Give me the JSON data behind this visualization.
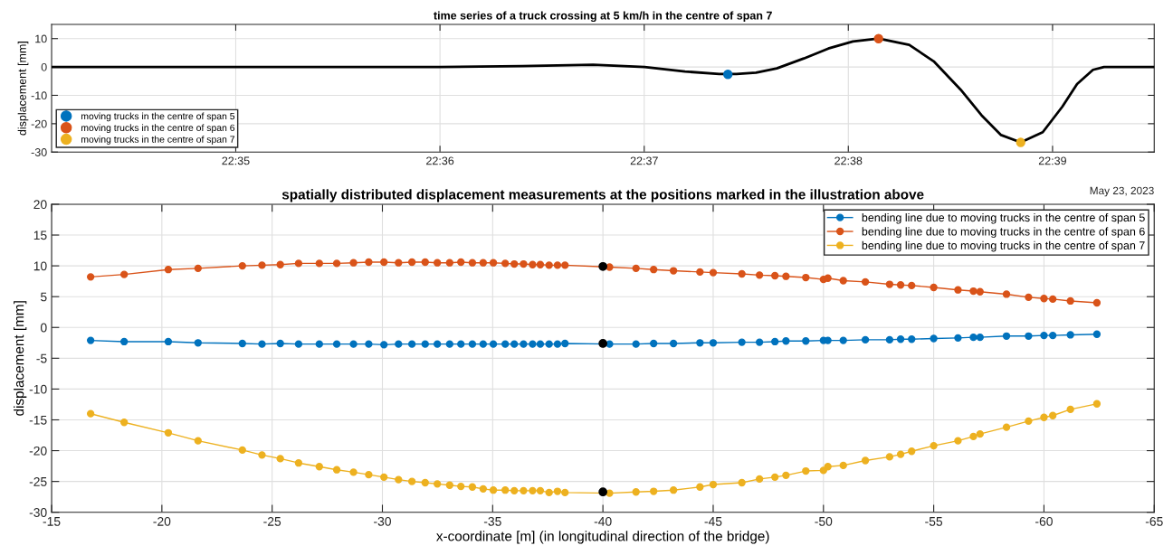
{
  "chart_data": [
    {
      "type": "line",
      "title": "time series of a truck crossing at 5 km/h in the centre of span 7",
      "ylabel": "displacement [mm]",
      "xlim": [
        22.5683,
        22.6583
      ],
      "xticks": [
        {
          "value": 22.58333,
          "label": "22:35"
        },
        {
          "value": 22.6,
          "label": "22:36"
        },
        {
          "value": 22.61667,
          "label": "22:37"
        },
        {
          "value": 22.63333,
          "label": "22:38"
        },
        {
          "value": 22.65,
          "label": "22:39"
        }
      ],
      "ylim": [
        -30,
        15
      ],
      "yticks": [
        -30,
        -20,
        -10,
        0,
        10
      ],
      "grid": true,
      "legend": "bottom left",
      "annotations": [
        "May 23, 2023"
      ],
      "series": [
        {
          "type": "line",
          "color": "#000000",
          "marker": "none",
          "x": [
            22.5683,
            22.5833,
            22.6,
            22.6067,
            22.6125,
            22.6167,
            22.62,
            22.6228,
            22.6242,
            22.6258,
            22.6275,
            22.6297,
            22.6317,
            22.6337,
            22.6358,
            22.6383,
            22.6403,
            22.6425,
            22.6442,
            22.6458,
            22.6474,
            22.6492,
            22.6508,
            22.652,
            22.6533,
            22.6542,
            22.6583
          ],
          "values": [
            0,
            0,
            0,
            0.3,
            0.8,
            0,
            -1.6,
            -2.5,
            -2.5,
            -2,
            -0.5,
            3,
            6.5,
            9,
            10,
            7.8,
            2,
            -8,
            -17,
            -24,
            -26.6,
            -23,
            -14,
            -6,
            -1,
            0,
            0
          ]
        },
        {
          "type": "scatter",
          "name": "moving trucks in the centre of span 5",
          "color": "#0072bd",
          "marker": "circle",
          "x": [
            22.6235
          ],
          "values": [
            -2.6
          ]
        },
        {
          "type": "scatter",
          "name": "moving trucks in the centre of span 6",
          "color": "#d95319",
          "marker": "circle",
          "x": [
            22.6358
          ],
          "values": [
            10
          ]
        },
        {
          "type": "scatter",
          "name": "moving trucks in the centre of span 7",
          "color": "#edb120",
          "marker": "circle",
          "x": [
            22.6474
          ],
          "values": [
            -26.6
          ]
        }
      ]
    },
    {
      "type": "line",
      "title": "spatially distributed displacement measurements at the positions marked in the illustration above",
      "xlabel": "x-coordinate [m] (in longitudinal direction of the bridge)",
      "ylabel": "displacement [mm]",
      "xlim": [
        -15,
        -65
      ],
      "xticks": [
        -15,
        -20,
        -25,
        -30,
        -35,
        -40,
        -45,
        -50,
        -55,
        -60,
        -65
      ],
      "ylim": [
        -30,
        20
      ],
      "yticks": [
        -30,
        -25,
        -20,
        -15,
        -10,
        -5,
        0,
        5,
        10,
        15,
        20
      ],
      "grid": true,
      "legend": "top right",
      "marker": "circle",
      "line_style": "solid",
      "x": [
        -16.77,
        -18.29,
        -20.29,
        -21.64,
        -23.65,
        -24.54,
        -25.37,
        -26.2,
        -27.14,
        -27.93,
        -28.69,
        -29.38,
        -30.07,
        -30.73,
        -31.34,
        -31.94,
        -32.49,
        -33.05,
        -33.56,
        -34.08,
        -34.57,
        -35.03,
        -35.57,
        -35.98,
        -36.4,
        -36.81,
        -37.16,
        -37.56,
        -37.94,
        -38.28,
        -40.3,
        -41.5,
        -42.3,
        -43.2,
        -44.4,
        -45,
        -46.3,
        -47.1,
        -47.8,
        -48.3,
        -49.2,
        -50,
        -50.2,
        -50.9,
        -51.9,
        -53,
        -53.5,
        -54,
        -55,
        -56.1,
        -56.8,
        -57.1,
        -58.3,
        -59.3,
        -60,
        -60.4,
        -61.2,
        -62.4
      ],
      "series": [
        {
          "name": "bending line due to moving trucks in the centre of span 5",
          "color": "#0072bd",
          "values": [
            -2.1,
            -2.3,
            -2.3,
            -2.5,
            -2.6,
            -2.7,
            -2.6,
            -2.7,
            -2.7,
            -2.7,
            -2.7,
            -2.7,
            -2.8,
            -2.7,
            -2.7,
            -2.7,
            -2.7,
            -2.7,
            -2.7,
            -2.7,
            -2.7,
            -2.7,
            -2.7,
            -2.7,
            -2.7,
            -2.7,
            -2.7,
            -2.7,
            -2.7,
            -2.6,
            -2.7,
            -2.7,
            -2.6,
            -2.6,
            -2.5,
            -2.5,
            -2.4,
            -2.4,
            -2.3,
            -2.2,
            -2.2,
            -2.1,
            -2.1,
            -2.1,
            -2.0,
            -2.0,
            -1.9,
            -1.9,
            -1.8,
            -1.7,
            -1.6,
            -1.6,
            -1.4,
            -1.4,
            -1.3,
            -1.3,
            -1.2,
            -1.1
          ]
        },
        {
          "name": "bending line due to moving trucks in the centre of span 6",
          "color": "#d95319",
          "values": [
            8.2,
            8.6,
            9.4,
            9.6,
            10.0,
            10.1,
            10.2,
            10.4,
            10.4,
            10.4,
            10.5,
            10.6,
            10.6,
            10.5,
            10.6,
            10.6,
            10.5,
            10.5,
            10.6,
            10.5,
            10.5,
            10.5,
            10.4,
            10.3,
            10.3,
            10.2,
            10.2,
            10.1,
            10.1,
            10.1,
            9.8,
            9.6,
            9.4,
            9.2,
            9.0,
            8.9,
            8.7,
            8.5,
            8.4,
            8.3,
            8.1,
            7.8,
            8.0,
            7.6,
            7.4,
            7.0,
            6.9,
            6.8,
            6.5,
            6.1,
            5.9,
            5.8,
            5.4,
            4.9,
            4.7,
            4.6,
            4.3,
            4.0
          ]
        },
        {
          "name": "bending line due to moving trucks in the centre of span 7",
          "color": "#edb120",
          "values": [
            -14.0,
            -15.4,
            -17.1,
            -18.4,
            -19.9,
            -20.7,
            -21.3,
            -22.0,
            -22.6,
            -23.1,
            -23.5,
            -23.9,
            -24.3,
            -24.7,
            -25.0,
            -25.2,
            -25.4,
            -25.6,
            -25.8,
            -25.9,
            -26.2,
            -26.4,
            -26.4,
            -26.5,
            -26.5,
            -26.5,
            -26.5,
            -26.8,
            -26.6,
            -26.8,
            -26.9,
            -26.7,
            -26.6,
            -26.4,
            -25.9,
            -25.5,
            -25.2,
            -24.6,
            -24.3,
            -24.0,
            -23.3,
            -23.2,
            -22.6,
            -22.4,
            -21.6,
            -21.0,
            -20.6,
            -20.1,
            -19.2,
            -18.4,
            -17.7,
            -17.3,
            -16.2,
            -15.2,
            -14.6,
            -14.3,
            -13.3,
            -12.4
          ]
        },
        {
          "type": "scatter",
          "color": "#000000",
          "x": [
            -40,
            -40,
            -40
          ],
          "values": [
            9.9,
            -2.6,
            -26.7
          ]
        }
      ]
    }
  ]
}
